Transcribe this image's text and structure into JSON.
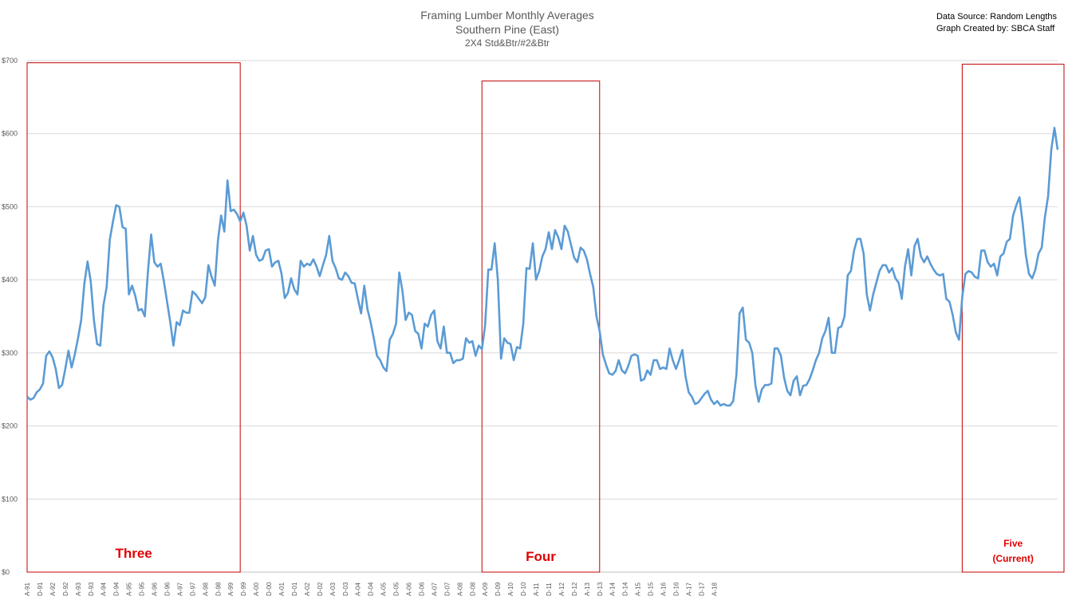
{
  "title": "Framing Lumber Monthly Averages",
  "subtitle": "Southern Pine (East)",
  "subtitle2": "2X4 Std&Btr/#2&Btr",
  "source": {
    "line1": "Data Source: Random Lengths",
    "line2": "Graph Created by: SBCA Staff"
  },
  "colors": {
    "line": "#5b9bd5",
    "box": "#c00000",
    "box_label": "#e00000",
    "grid": "#d9d9d9"
  },
  "chart_data": {
    "type": "line",
    "title": "Framing Lumber Monthly Averages",
    "ylim": [
      0,
      700
    ],
    "yticks": [
      "$0",
      "$100",
      "$200",
      "$300",
      "$400",
      "$500",
      "$600",
      "$700"
    ],
    "x_start": "Apr 1991",
    "x_step_months": 1,
    "grid": true,
    "xticks": [
      "A-91",
      "D-91",
      "A-92",
      "D-92",
      "A-93",
      "D-93",
      "A-94",
      "D-94",
      "A-95",
      "D-95",
      "A-96",
      "D-96",
      "A-97",
      "D-97",
      "A-98",
      "D-98",
      "A-99",
      "D-99",
      "A-00",
      "D-00",
      "A-01",
      "D-01",
      "A-02",
      "D-02",
      "A-03",
      "D-03",
      "A-04",
      "D-04",
      "A-05",
      "D-05",
      "A-06",
      "D-06",
      "A-07",
      "D-07",
      "A-08",
      "D-08",
      "A-09",
      "D-09",
      "A-10",
      "D-10",
      "A-11",
      "D-11",
      "A-12",
      "D-12",
      "A-13",
      "D-13",
      "A-14",
      "D-14",
      "A-15",
      "D-15",
      "A-16",
      "D-16",
      "A-17",
      "D-17",
      "A-18"
    ],
    "series": [
      {
        "values": [
          240,
          236,
          238,
          246,
          250,
          258,
          296,
          302,
          294,
          278,
          252,
          256,
          278,
          303,
          280,
          298,
          320,
          345,
          395,
          425,
          398,
          345,
          312,
          310,
          365,
          390,
          455,
          480,
          502,
          500,
          472,
          470,
          380,
          392,
          378,
          358,
          360,
          350,
          412,
          462,
          424,
          418,
          422,
          398,
          370,
          342,
          310,
          342,
          338,
          358,
          355,
          355,
          384,
          380,
          374,
          368,
          376,
          420,
          404,
          392,
          454,
          488,
          466,
          536,
          494,
          496,
          490,
          480,
          492,
          474,
          440,
          460,
          434,
          426,
          428,
          440,
          442,
          418,
          424,
          426,
          408,
          375,
          382,
          402,
          387,
          380,
          426,
          418,
          422,
          420,
          428,
          418,
          405,
          420,
          434,
          460,
          426,
          416,
          402,
          400,
          410,
          405,
          396,
          395,
          374,
          354,
          392,
          360,
          342,
          320,
          296,
          290,
          280,
          275,
          318,
          326,
          340,
          410,
          385,
          345,
          355,
          352,
          330,
          326,
          306,
          340,
          336,
          352,
          358,
          316,
          306,
          336,
          300,
          300,
          286,
          290,
          290,
          292,
          320,
          314,
          316,
          296,
          310,
          305,
          338,
          414,
          414,
          450,
          400,
          292,
          320,
          314,
          312,
          290,
          308,
          306,
          340,
          416,
          415,
          450,
          400,
          412,
          432,
          442,
          465,
          442,
          468,
          458,
          442,
          474,
          466,
          448,
          430,
          424,
          444,
          440,
          428,
          408,
          390,
          350,
          330,
          298,
          284,
          272,
          270,
          275,
          290,
          276,
          272,
          282,
          296,
          298,
          296,
          262,
          264,
          276,
          270,
          290,
          290,
          278,
          280,
          278,
          306,
          290,
          278,
          290,
          304,
          268,
          246,
          240,
          230,
          232,
          238,
          244,
          248,
          236,
          230,
          234,
          228,
          230,
          228,
          228,
          234,
          270,
          354,
          362,
          318,
          314,
          300,
          255,
          233,
          250,
          256,
          256,
          258,
          306,
          306,
          296,
          266,
          248,
          242,
          262,
          268,
          242,
          255,
          256,
          264,
          276,
          290,
          300,
          320,
          330,
          348,
          300,
          300,
          334,
          336,
          350,
          406,
          412,
          440,
          456,
          456,
          436,
          380,
          358,
          380,
          396,
          412,
          420,
          420,
          410,
          416,
          402,
          396,
          374,
          418,
          442,
          406,
          446,
          456,
          432,
          424,
          432,
          422,
          414,
          408,
          406,
          408,
          374,
          370,
          352,
          328,
          318,
          376,
          408,
          412,
          410,
          404,
          402,
          440,
          440,
          424,
          418,
          422,
          406,
          432,
          436,
          452,
          456,
          488,
          502,
          513,
          478,
          434,
          408,
          402,
          414,
          436,
          444,
          486,
          514,
          578,
          608,
          578
        ]
      }
    ],
    "boxes": [
      {
        "label": "Three",
        "x_from": "Apr 1991",
        "x_to": "Nov 1996",
        "y_top": 697
      },
      {
        "label": "Four",
        "x_from": "Mar 2003",
        "x_to": "Apr 2006",
        "y_top": 672
      },
      {
        "label": "Five\n(Current)",
        "x_from": "Oct 2015",
        "x_to": "Jun 2018",
        "y_top": 695
      }
    ]
  }
}
